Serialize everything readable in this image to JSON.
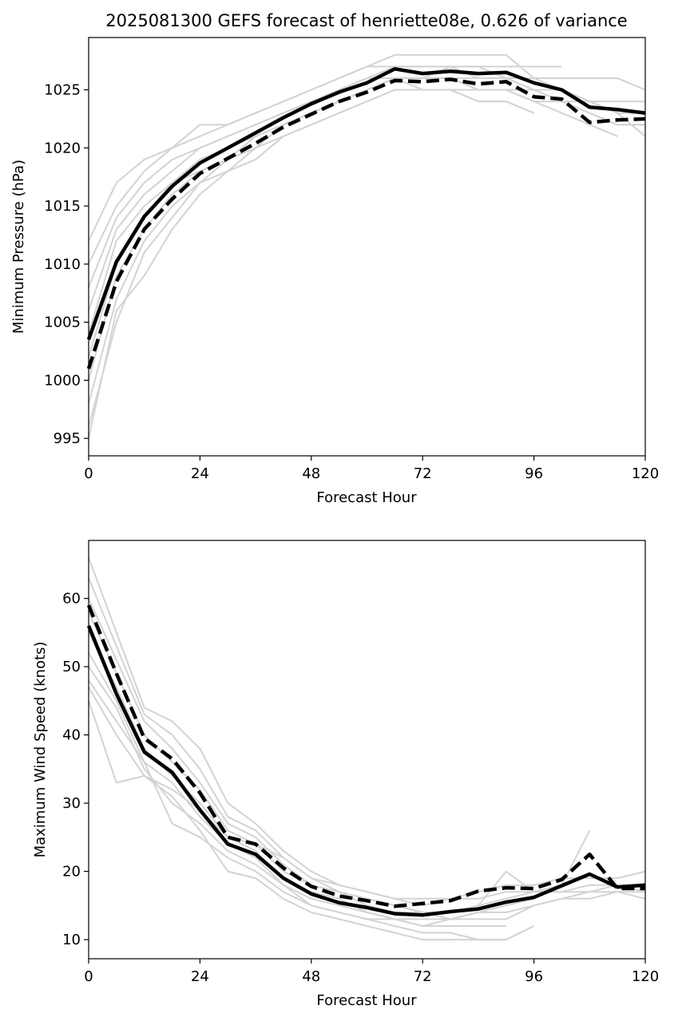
{
  "chart_data": [
    {
      "type": "line",
      "title": "2025081300 GEFS forecast of henriette08e, 0.626 of variance",
      "xlabel": "Forecast Hour",
      "ylabel": "Minimum Pressure (hPa)",
      "xlim": [
        0,
        120
      ],
      "ylim": [
        993.5,
        1029.5
      ],
      "xticks": [
        0,
        24,
        48,
        72,
        96,
        120
      ],
      "yticks": [
        995,
        1000,
        1005,
        1010,
        1015,
        1020,
        1025
      ],
      "grid": false,
      "legend": "none",
      "x": [
        0,
        6,
        12,
        18,
        24,
        30,
        36,
        42,
        48,
        54,
        60,
        66,
        72,
        78,
        84,
        90,
        96,
        102,
        108,
        114,
        120
      ],
      "series": [
        {
          "style": "solid",
          "color": "#000000",
          "values": [
            1003.5,
            1010.2,
            1014.1,
            1016.7,
            1018.7,
            1020.0,
            1021.3,
            1022.6,
            1023.8,
            1024.8,
            1025.6,
            1026.8,
            1026.4,
            1026.6,
            1026.4,
            1026.5,
            1025.6,
            1025.0,
            1023.5,
            1023.3,
            1023.0
          ]
        },
        {
          "style": "dashed",
          "color": "#000000",
          "values": [
            1001.0,
            1008.5,
            1013.0,
            1015.6,
            1017.8,
            1019.1,
            1020.4,
            1021.8,
            1022.9,
            1024.0,
            1024.8,
            1025.8,
            1025.7,
            1025.9,
            1025.5,
            1025.7,
            1024.4,
            1024.2,
            1022.2,
            1022.4,
            1022.5
          ]
        }
      ],
      "members": [
        {
          "color": "#d3d3d3",
          "values": [
            1012.0,
            1017.0,
            1019.0,
            1020.0,
            1022.0,
            1022.0,
            1023.0,
            1024.0,
            1025.0,
            1026.0,
            1027.0,
            1028.0,
            1028.0,
            1028.0,
            1028.0,
            1028.0,
            1026.0,
            1026.0,
            1026.0,
            1026.0,
            1025.0
          ]
        },
        {
          "color": "#d3d3d3",
          "values": [
            1010.0,
            1015.0,
            1018.0,
            1020.0,
            1021.0,
            1022.0,
            1023.0,
            1024.0,
            1025.0,
            1026.0,
            1027.0,
            1027.0,
            1027.0,
            1027.0,
            1027.0,
            1027.0,
            1027.0,
            1027.0
          ]
        },
        {
          "color": "#d3d3d3",
          "values": [
            1008.0,
            1014.0,
            1017.0,
            1019.0,
            1020.0,
            1021.0,
            1022.0,
            1023.0,
            1024.0,
            1025.0,
            1026.0,
            1027.0,
            1027.0,
            1027.0,
            1027.0,
            1026.0,
            1026.0,
            1025.0,
            1024.0,
            1023.0,
            1021.0
          ]
        },
        {
          "color": "#d3d3d3",
          "values": [
            1006.0,
            1013.0,
            1016.0,
            1018.0,
            1020.0,
            1021.0,
            1022.0,
            1023.0,
            1024.0,
            1025.0,
            1026.0,
            1026.0,
            1026.0,
            1026.0,
            1025.0,
            1025.0,
            1024.0,
            1023.0,
            1022.0,
            1021.0
          ]
        },
        {
          "color": "#d3d3d3",
          "values": [
            1004.0,
            1012.0,
            1015.0,
            1017.0,
            1019.0,
            1020.0,
            1021.0,
            1022.0,
            1023.0,
            1024.0,
            1025.0,
            1026.0,
            1026.0,
            1026.0,
            1026.0,
            1026.0,
            1025.0,
            1024.0,
            1023.0,
            1022.0,
            1022.0
          ]
        },
        {
          "color": "#d3d3d3",
          "values": [
            1002.0,
            1010.0,
            1014.0,
            1017.0,
            1018.0,
            1019.0,
            1021.0,
            1022.0,
            1023.0,
            1024.0,
            1025.0,
            1026.0,
            1025.0,
            1025.0,
            1024.0,
            1024.0,
            1023.0
          ]
        },
        {
          "color": "#d3d3d3",
          "values": [
            1000.0,
            1009.0,
            1013.0,
            1016.0,
            1018.0,
            1019.0,
            1020.0,
            1022.0,
            1023.0,
            1024.0,
            1025.0,
            1026.0,
            1026.0,
            1026.0,
            1025.0,
            1025.0,
            1025.0,
            1024.0,
            1024.0,
            1023.0,
            1023.0
          ]
        },
        {
          "color": "#d3d3d3",
          "values": [
            998.0,
            1007.0,
            1012.0,
            1015.0,
            1017.0,
            1019.0,
            1020.0,
            1021.0,
            1022.0,
            1023.0,
            1024.0,
            1025.0,
            1025.0,
            1025.0,
            1025.0,
            1025.0,
            1024.0,
            1024.0,
            1023.0,
            1022.0,
            1022.0
          ]
        },
        {
          "color": "#d3d3d3",
          "values": [
            996.0,
            1005.0,
            1011.0,
            1014.0,
            1017.0,
            1018.0,
            1019.0,
            1021.0,
            1022.0,
            1023.0,
            1024.0,
            1025.0,
            1025.0,
            1025.0,
            1024.0,
            1024.0,
            1023.0
          ]
        },
        {
          "color": "#d3d3d3",
          "values": [
            995.0,
            1006.0,
            1009.0,
            1013.0,
            1016.0,
            1018.0,
            1020.0,
            1022.0,
            1023.0,
            1024.0,
            1025.0,
            1026.0,
            1026.0,
            1027.0,
            1026.0,
            1026.0,
            1025.0,
            1025.0,
            1024.0,
            1024.0,
            1024.0
          ]
        }
      ]
    },
    {
      "type": "line",
      "title": "",
      "xlabel": "Forecast Hour",
      "ylabel": "Maximum Wind Speed (knots)",
      "xlim": [
        0,
        120
      ],
      "ylim": [
        7.2,
        68.5
      ],
      "xticks": [
        0,
        24,
        48,
        72,
        96,
        120
      ],
      "yticks": [
        10,
        20,
        30,
        40,
        50,
        60
      ],
      "grid": false,
      "legend": "none",
      "x": [
        0,
        6,
        12,
        18,
        24,
        30,
        36,
        42,
        48,
        54,
        60,
        66,
        72,
        78,
        84,
        90,
        96,
        102,
        108,
        114,
        120
      ],
      "series": [
        {
          "style": "solid",
          "color": "#000000",
          "values": [
            56.0,
            46.0,
            37.5,
            34.5,
            29.0,
            24.0,
            22.5,
            19.0,
            16.7,
            15.4,
            14.7,
            13.8,
            13.6,
            14.1,
            14.5,
            15.5,
            16.2,
            17.9,
            19.6,
            17.7,
            18.0
          ]
        },
        {
          "style": "dashed",
          "color": "#000000",
          "values": [
            59.0,
            49.0,
            39.5,
            36.5,
            31.5,
            25.0,
            24.0,
            20.5,
            17.8,
            16.4,
            15.7,
            14.9,
            15.3,
            15.7,
            17.1,
            17.6,
            17.5,
            18.8,
            22.5,
            17.5,
            17.5
          ]
        }
      ],
      "members": [
        {
          "color": "#d3d3d3",
          "values": [
            66.0,
            55.0,
            44.0,
            42.0,
            38.0,
            30.0,
            27.0,
            23.0,
            20.0,
            18.0,
            17.0,
            16.0,
            16.0,
            16.0,
            17.0,
            18.0,
            18.0,
            19.0,
            19.0,
            19.0,
            20.0
          ]
        },
        {
          "color": "#d3d3d3",
          "values": [
            63.0,
            53.0,
            43.0,
            40.0,
            35.0,
            28.0,
            26.0,
            22.0,
            19.0,
            18.0,
            17.0,
            16.0,
            15.0,
            16.0,
            16.0,
            17.0,
            17.0,
            18.0,
            26.0
          ]
        },
        {
          "color": "#d3d3d3",
          "values": [
            60.0,
            51.0,
            42.0,
            38.0,
            33.0,
            27.0,
            25.0,
            21.0,
            18.0,
            17.0,
            16.0,
            15.0,
            14.0,
            14.0,
            15.0,
            20.0,
            17.0,
            17.0,
            18.0,
            18.0,
            17.0
          ]
        },
        {
          "color": "#d3d3d3",
          "values": [
            58.0,
            49.0,
            40.0,
            36.0,
            32.0,
            26.0,
            24.0,
            20.0,
            18.0,
            17.0,
            15.0,
            14.0,
            14.0,
            13.0,
            13.0,
            13.0,
            15.0,
            16.0,
            16.0,
            17.0,
            16.0
          ]
        },
        {
          "color": "#d3d3d3",
          "values": [
            55.0,
            47.0,
            38.0,
            34.0,
            30.0,
            25.0,
            23.0,
            19.0,
            17.0,
            16.0,
            14.0,
            13.0,
            13.0,
            13.0,
            14.0,
            14.0,
            15.0,
            16.0,
            17.0,
            18.0,
            18.0
          ]
        },
        {
          "color": "#d3d3d3",
          "values": [
            52.0,
            45.0,
            36.0,
            33.0,
            28.0,
            24.0,
            22.0,
            18.0,
            16.0,
            15.0,
            14.0,
            13.0,
            12.0,
            12.0,
            12.0,
            12.0
          ]
        },
        {
          "color": "#d3d3d3",
          "values": [
            50.0,
            44.0,
            35.0,
            30.0,
            27.0,
            23.0,
            21.0,
            18.0,
            15.0,
            14.0,
            13.0,
            12.0,
            11.0,
            11.0,
            10.0,
            10.0,
            12.0
          ]
        },
        {
          "color": "#d3d3d3",
          "values": [
            48.0,
            42.0,
            36.0,
            27.0,
            25.0,
            22.0,
            20.0,
            17.0,
            15.0,
            14.0,
            13.0,
            13.0,
            12.0,
            13.0,
            14.0,
            15.0,
            16.0
          ]
        },
        {
          "color": "#d3d3d3",
          "values": [
            47.0,
            40.0,
            34.0,
            31.0,
            26.0,
            20.0,
            19.0,
            16.0,
            14.0,
            13.0,
            12.0,
            11.0,
            10.0,
            10.0,
            10.0,
            10.0,
            12.0
          ]
        },
        {
          "color": "#d3d3d3",
          "values": [
            45.0,
            33.0,
            34.0,
            32.0,
            29.0,
            25.0,
            24.0,
            22.0,
            19.0,
            17.0,
            16.0,
            15.0,
            14.0,
            14.0,
            15.0,
            16.0,
            17.0,
            17.0,
            17.0,
            17.0,
            17.0
          ]
        }
      ]
    }
  ]
}
